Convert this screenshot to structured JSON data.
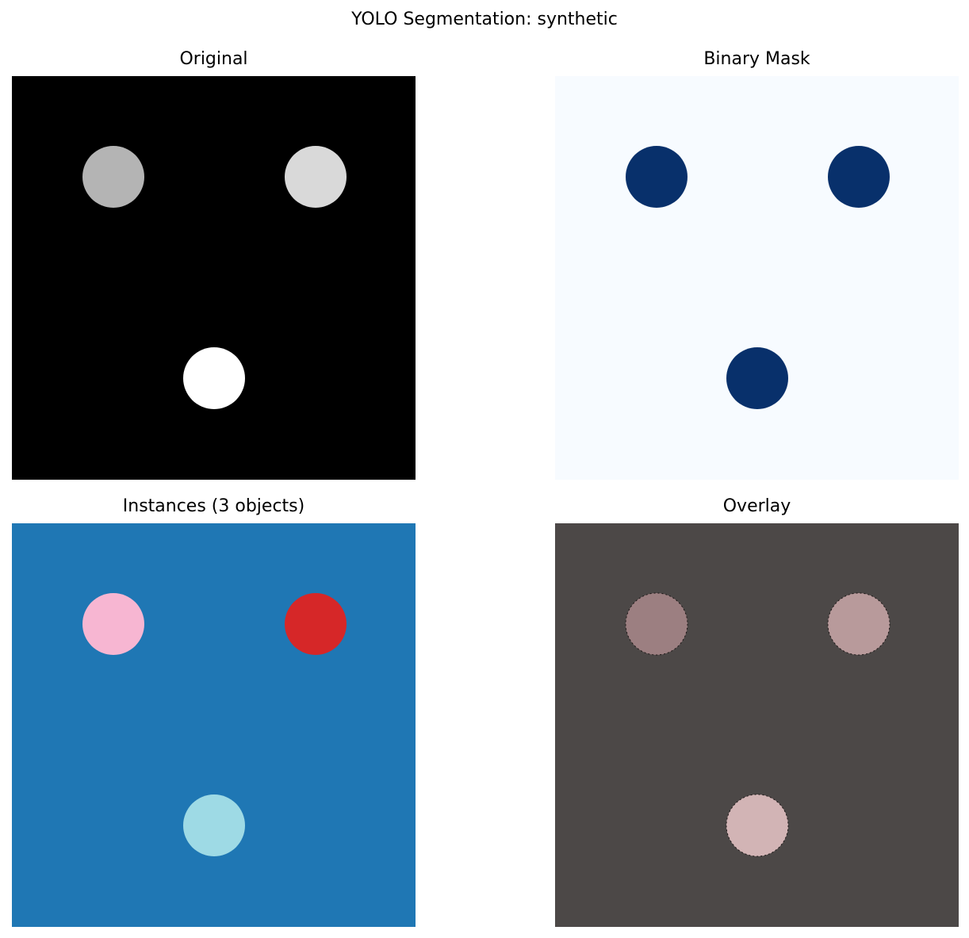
{
  "figure": {
    "title": "YOLO Segmentation: synthetic"
  },
  "panels": {
    "original": {
      "title": "Original"
    },
    "binary": {
      "title": "Binary Mask"
    },
    "instances": {
      "title": "Instances (3 objects)"
    },
    "overlay": {
      "title": "Overlay"
    }
  },
  "objects": [
    {
      "id": "top-left"
    },
    {
      "id": "top-right"
    },
    {
      "id": "bottom-center"
    }
  ],
  "colors": {
    "original_background": "#000000",
    "original_objects": [
      "#b4b4b4",
      "#d9d9d9",
      "#ffffff"
    ],
    "binary_background": "#f7fbff",
    "binary_foreground": "#08306b",
    "instance_background": "#1f77b4",
    "instance_objects": [
      "#f7b6d2",
      "#d62728",
      "#9edae5"
    ],
    "overlay_background": "#4c4847",
    "overlay_objects": [
      "#9c7f81",
      "#b89a9b",
      "#d2b4b5"
    ]
  }
}
